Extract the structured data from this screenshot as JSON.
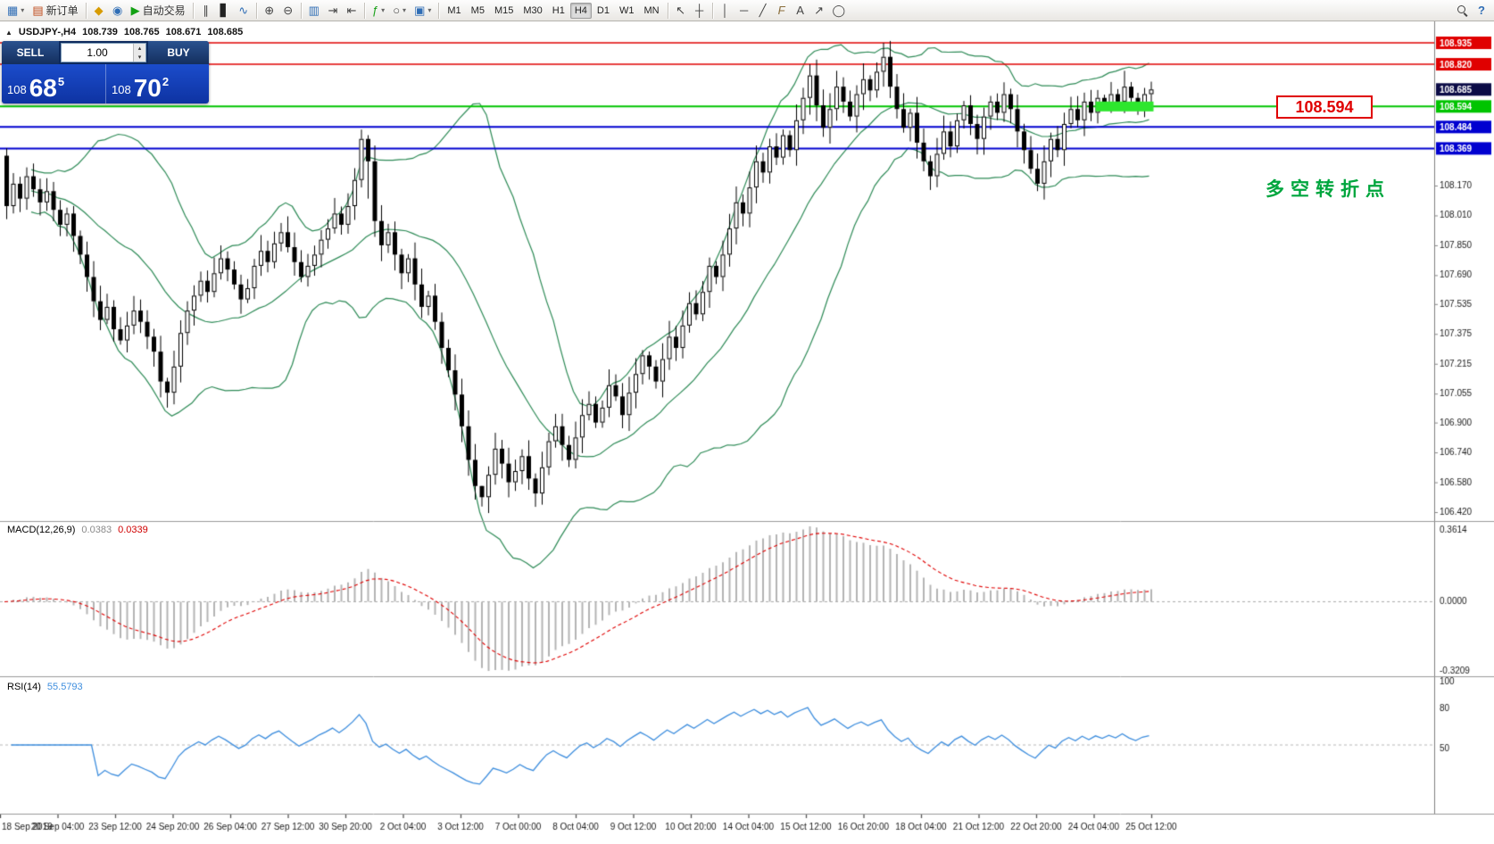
{
  "icons": {
    "new_chart": "▦",
    "dropdown": "▾",
    "ticket": "▤",
    "editor": "◆",
    "data_window": "◉",
    "play": "▶",
    "bars": "∥",
    "candles": "▋",
    "line_chart": "∿",
    "zoom_in": "⊕",
    "zoom_out": "⊖",
    "tile": "▥",
    "autoscroll": "⇥",
    "shift": "⇤",
    "indicators": "ƒ",
    "periods": "○",
    "templates": "▣",
    "cursor": "↖",
    "crosshair": "┼",
    "vline": "│",
    "hline": "─",
    "trendline": "╱",
    "fibo": "F",
    "text_tool": "A",
    "arrow_tool": "↗",
    "ellipse": "◯",
    "collapse": "▲",
    "spin_up": "▴",
    "spin_down": "▾",
    "help": "?"
  },
  "toolbar": {
    "new_order_label": "新订单",
    "autotrading_label": "自动交易",
    "timeframes": [
      "M1",
      "M5",
      "M15",
      "M30",
      "H1",
      "H4",
      "D1",
      "W1",
      "MN"
    ],
    "active_timeframe": "H4"
  },
  "one_click": {
    "sell_label": "SELL",
    "buy_label": "BUY",
    "volume": "1.00",
    "price_prefix": "108",
    "sell_big": "68",
    "sell_sup": "5",
    "buy_big": "70",
    "buy_sup": "2"
  },
  "symbol_strip": {
    "symbol": "USDJPY-,H4",
    "open": "108.739",
    "high": "108.765",
    "low": "108.671",
    "close": "108.685"
  },
  "annotations": {
    "price_label": "108.594",
    "cn_note": "多空转折点"
  },
  "indicators": {
    "macd": {
      "title": "MACD(12,26,9)",
      "value_main": "0.0383",
      "value_signal": "0.0339",
      "axis": [
        "0.3614",
        "0.0000",
        "-0.3209"
      ]
    },
    "rsi": {
      "title": "RSI(14)",
      "value": "55.5793",
      "axis": [
        "100",
        "80",
        "50"
      ],
      "level": 50
    }
  },
  "chart_data": {
    "type": "candlestick+indicators",
    "symbol": "USDJPY",
    "timeframe": "H4",
    "last_ohlc": {
      "open": 108.739,
      "high": 108.765,
      "low": 108.671,
      "close": 108.685
    },
    "ylim": [
      106.42,
      108.935
    ],
    "first_open": 108.33,
    "closes": [
      108.06,
      108.18,
      108.1,
      108.22,
      108.15,
      108.08,
      108.14,
      108.04,
      107.96,
      108.02,
      107.9,
      107.8,
      107.68,
      107.55,
      107.45,
      107.52,
      107.4,
      107.34,
      107.42,
      107.5,
      107.44,
      107.36,
      107.28,
      107.12,
      107.06,
      107.2,
      107.38,
      107.5,
      107.58,
      107.66,
      107.6,
      107.7,
      107.78,
      107.72,
      107.64,
      107.56,
      107.62,
      107.74,
      107.82,
      107.76,
      107.86,
      107.92,
      107.84,
      107.76,
      107.68,
      107.74,
      107.8,
      107.88,
      107.94,
      108.02,
      107.96,
      108.06,
      108.2,
      108.42,
      108.3,
      107.98,
      107.85,
      107.92,
      107.8,
      107.7,
      107.78,
      107.64,
      107.52,
      107.58,
      107.44,
      107.3,
      107.18,
      107.05,
      106.88,
      106.7,
      106.56,
      106.5,
      106.62,
      106.76,
      106.68,
      106.58,
      106.64,
      106.72,
      106.6,
      106.52,
      106.66,
      106.8,
      106.88,
      106.78,
      106.7,
      106.82,
      106.94,
      107.0,
      106.9,
      106.98,
      107.1,
      107.04,
      106.94,
      107.06,
      107.16,
      107.26,
      107.2,
      107.12,
      107.24,
      107.36,
      107.3,
      107.42,
      107.54,
      107.48,
      107.6,
      107.74,
      107.68,
      107.8,
      107.94,
      108.08,
      108.02,
      108.16,
      108.3,
      108.24,
      108.38,
      108.32,
      108.44,
      108.36,
      108.52,
      108.64,
      108.76,
      108.6,
      108.48,
      108.58,
      108.7,
      108.62,
      108.54,
      108.66,
      108.74,
      108.68,
      108.78,
      108.86,
      108.7,
      108.58,
      108.48,
      108.56,
      108.4,
      108.3,
      108.22,
      108.34,
      108.46,
      108.38,
      108.52,
      108.6,
      108.5,
      108.42,
      108.54,
      108.62,
      108.56,
      108.66,
      108.58,
      108.46,
      108.36,
      108.26,
      108.18,
      108.3,
      108.42,
      108.36,
      108.5,
      108.58,
      108.52,
      108.62,
      108.56,
      108.64,
      108.6,
      108.66,
      108.62,
      108.7,
      108.64,
      108.6,
      108.66,
      108.685
    ],
    "wick_extremes": {
      "0": [
        108.37,
        107.99
      ],
      "24": [
        107.14,
        106.98
      ],
      "53": [
        108.47,
        108.16
      ],
      "54": [
        108.44,
        108.1
      ],
      "71": [
        106.56,
        106.45
      ],
      "120": [
        108.82,
        108.55
      ],
      "131": [
        108.935,
        108.7
      ]
    },
    "bollinger": {
      "period": 20,
      "deviation": 2,
      "color": "#2e8b57"
    },
    "hlines": [
      {
        "price": 108.935,
        "label": "108.935",
        "color": "#e00000",
        "lw": 1.5
      },
      {
        "price": 108.82,
        "label": "108.820",
        "color": "#e00000",
        "lw": 1.5
      },
      {
        "price": 108.594,
        "label": "108.594",
        "color": "#00c400",
        "lw": 2
      },
      {
        "price": 108.484,
        "label": "108.484",
        "color": "#0000d0",
        "lw": 2
      },
      {
        "price": 108.369,
        "label": "108.369",
        "color": "#0000d0",
        "lw": 2
      }
    ],
    "bid": {
      "price": 108.685,
      "label": "108.685",
      "badge": "#0b0b46"
    },
    "highlight_zone": {
      "price": 108.594,
      "from_bar": 163,
      "to_bar": 171,
      "height": 11,
      "color": "#2ee62e"
    },
    "price_ticks": [
      "108.170",
      "108.010",
      "107.850",
      "107.690",
      "107.535",
      "107.375",
      "107.215",
      "107.055",
      "106.900",
      "106.740",
      "106.580",
      "106.420"
    ],
    "time_labels": [
      "18 Sep 2019",
      "20 Sep 04:00",
      "23 Sep 12:00",
      "24 Sep 20:00",
      "26 Sep 04:00",
      "27 Sep 12:00",
      "30 Sep 20:00",
      "2 Oct 04:00",
      "3 Oct 12:00",
      "7 Oct 00:00",
      "8 Oct 04:00",
      "9 Oct 12:00",
      "10 Oct 20:00",
      "14 Oct 04:00",
      "15 Oct 12:00",
      "16 Oct 20:00",
      "18 Oct 04:00",
      "21 Oct 12:00",
      "22 Oct 20:00",
      "24 Oct 04:00",
      "25 Oct 12:00"
    ],
    "macd_values_now": {
      "main": 0.0383,
      "signal": 0.0339
    },
    "rsi_value_now": 55.5793
  }
}
